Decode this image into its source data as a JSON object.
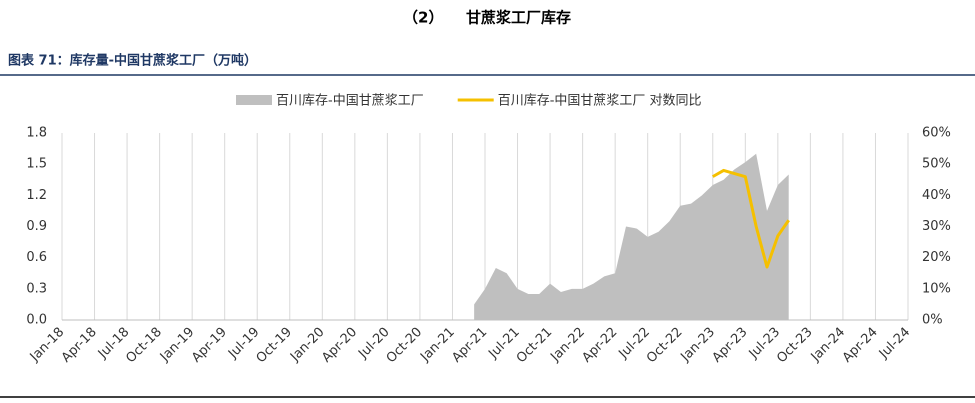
{
  "heading": "（2）　　甘蔗浆工厂库存",
  "chart_data": {
    "type": "area-line",
    "title": "图表 71：库存量-中国甘蔗浆工厂（万吨）",
    "x": [
      "Mar-21",
      "Apr-21",
      "May-21",
      "Jun-21",
      "Jul-21",
      "Aug-21",
      "Sep-21",
      "Oct-21",
      "Nov-21",
      "Dec-21",
      "Jan-22",
      "Feb-22",
      "Mar-22",
      "Apr-22",
      "May-22",
      "Jun-22",
      "Jul-22",
      "Aug-22",
      "Sep-22",
      "Oct-22",
      "Nov-22",
      "Dec-22",
      "Jan-23",
      "Feb-23",
      "Mar-23",
      "Apr-23",
      "May-23",
      "Jun-23",
      "Jul-23",
      "Aug-23"
    ],
    "series": [
      {
        "name": "百川库存-中国甘蔗浆工厂",
        "color": "#bfbfbf",
        "kind": "area",
        "values": [
          0.15,
          0.3,
          0.5,
          0.45,
          0.3,
          0.25,
          0.25,
          0.35,
          0.27,
          0.3,
          0.3,
          0.35,
          0.42,
          0.45,
          0.9,
          0.88,
          0.8,
          0.85,
          0.95,
          1.1,
          1.12,
          1.2,
          1.3,
          1.35,
          1.45,
          1.52,
          1.6,
          1.05,
          1.3,
          1.4
        ]
      },
      {
        "name": "百川库存-中国甘蔗浆工厂 对数同比",
        "color": "#f5c000",
        "kind": "line",
        "axis": "y2",
        "values": [
          null,
          null,
          null,
          null,
          null,
          null,
          null,
          null,
          null,
          null,
          null,
          null,
          null,
          null,
          null,
          null,
          null,
          null,
          null,
          null,
          null,
          null,
          46,
          48,
          47,
          46,
          30,
          17,
          27,
          32
        ]
      }
    ],
    "xlim": [
      "Jan-18",
      "Jul-24"
    ],
    "xticks": [
      "Jan-18",
      "Apr-18",
      "Jul-18",
      "Oct-18",
      "Jan-19",
      "Apr-19",
      "Jul-19",
      "Oct-19",
      "Jan-20",
      "Apr-20",
      "Jul-20",
      "Oct-20",
      "Jan-21",
      "Apr-21",
      "Jul-21",
      "Oct-21",
      "Jan-22",
      "Apr-22",
      "Jul-22",
      "Oct-22",
      "Jan-23",
      "Apr-23",
      "Jul-23",
      "Oct-23",
      "Jan-24",
      "Apr-24",
      "Jul-24"
    ],
    "ylim": [
      0,
      1.8
    ],
    "yticks": [
      {
        "value": 0,
        "label": "0.0"
      },
      0.3,
      0.6,
      0.9,
      1.2,
      1.5,
      1.8
    ],
    "y2lim": [
      0,
      60
    ],
    "y2ticks": [
      {
        "value": 0,
        "label": "0%"
      },
      {
        "value": 10,
        "label": "10%"
      },
      {
        "value": 20,
        "label": "20%"
      },
      {
        "value": 30,
        "label": "30%"
      },
      {
        "value": 40,
        "label": "40%"
      },
      {
        "value": 50,
        "label": "50%"
      },
      {
        "value": 60,
        "label": "60%"
      }
    ],
    "grid": true
  }
}
